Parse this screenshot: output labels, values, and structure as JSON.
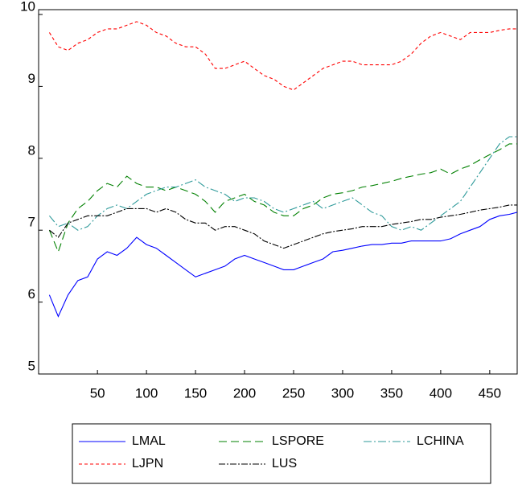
{
  "chart_data": {
    "type": "line",
    "x": [
      1,
      10,
      20,
      30,
      40,
      50,
      60,
      70,
      80,
      90,
      100,
      110,
      120,
      130,
      140,
      150,
      160,
      170,
      180,
      190,
      200,
      210,
      220,
      230,
      240,
      250,
      260,
      270,
      280,
      290,
      300,
      310,
      320,
      330,
      340,
      350,
      360,
      370,
      380,
      390,
      400,
      410,
      420,
      430,
      440,
      450,
      460,
      470,
      478
    ],
    "xlim": [
      -10,
      478
    ],
    "xticks": [
      50,
      100,
      150,
      200,
      250,
      300,
      350,
      400,
      450
    ],
    "ylim": [
      5,
      10
    ],
    "yticks": [
      5,
      6,
      7,
      8,
      9,
      10
    ],
    "series": [
      {
        "name": "LMAL",
        "color": "#0000ff",
        "dash": "none",
        "values": [
          6.1,
          5.8,
          6.1,
          6.3,
          6.35,
          6.6,
          6.7,
          6.65,
          6.75,
          6.9,
          6.8,
          6.75,
          6.65,
          6.55,
          6.45,
          6.35,
          6.4,
          6.45,
          6.5,
          6.6,
          6.65,
          6.6,
          6.55,
          6.5,
          6.45,
          6.45,
          6.5,
          6.55,
          6.6,
          6.7,
          6.72,
          6.75,
          6.78,
          6.8,
          6.8,
          6.82,
          6.82,
          6.85,
          6.85,
          6.85,
          6.85,
          6.88,
          6.95,
          7.0,
          7.05,
          7.15,
          7.2,
          7.22,
          7.25
        ]
      },
      {
        "name": "LSPORE",
        "color": "#008000",
        "dash": "10,5",
        "values": [
          7.0,
          6.7,
          7.1,
          7.3,
          7.4,
          7.55,
          7.65,
          7.6,
          7.75,
          7.65,
          7.6,
          7.6,
          7.55,
          7.6,
          7.55,
          7.5,
          7.4,
          7.25,
          7.4,
          7.45,
          7.5,
          7.4,
          7.35,
          7.25,
          7.2,
          7.2,
          7.3,
          7.35,
          7.45,
          7.5,
          7.52,
          7.55,
          7.6,
          7.62,
          7.65,
          7.68,
          7.72,
          7.75,
          7.78,
          7.8,
          7.85,
          7.78,
          7.85,
          7.9,
          7.98,
          8.05,
          8.12,
          8.2,
          8.2
        ]
      },
      {
        "name": "LCHINA",
        "color": "#2e9a9a",
        "dash": "10,3,2,3",
        "values": [
          7.2,
          7.05,
          7.1,
          7.0,
          7.05,
          7.2,
          7.3,
          7.35,
          7.3,
          7.4,
          7.5,
          7.55,
          7.6,
          7.6,
          7.65,
          7.7,
          7.6,
          7.55,
          7.5,
          7.4,
          7.45,
          7.45,
          7.4,
          7.3,
          7.25,
          7.3,
          7.35,
          7.4,
          7.3,
          7.35,
          7.4,
          7.45,
          7.35,
          7.25,
          7.2,
          7.05,
          7.0,
          7.05,
          7.0,
          7.1,
          7.2,
          7.3,
          7.4,
          7.6,
          7.8,
          8.0,
          8.2,
          8.3,
          8.3
        ]
      },
      {
        "name": "LJPN",
        "color": "#ff0000",
        "dash": "4,3",
        "values": [
          9.75,
          9.55,
          9.5,
          9.6,
          9.65,
          9.75,
          9.8,
          9.8,
          9.85,
          9.9,
          9.85,
          9.75,
          9.7,
          9.6,
          9.55,
          9.55,
          9.45,
          9.25,
          9.25,
          9.3,
          9.35,
          9.25,
          9.15,
          9.1,
          9.0,
          8.95,
          9.05,
          9.15,
          9.25,
          9.3,
          9.35,
          9.35,
          9.3,
          9.3,
          9.3,
          9.3,
          9.35,
          9.45,
          9.6,
          9.7,
          9.75,
          9.7,
          9.65,
          9.75,
          9.75,
          9.75,
          9.78,
          9.8,
          9.8
        ]
      },
      {
        "name": "LUS",
        "color": "#000000",
        "dash": "8,2,2,2",
        "values": [
          7.0,
          6.9,
          7.1,
          7.15,
          7.2,
          7.2,
          7.2,
          7.25,
          7.3,
          7.3,
          7.3,
          7.25,
          7.3,
          7.25,
          7.15,
          7.1,
          7.1,
          7.0,
          7.05,
          7.05,
          7.0,
          6.95,
          6.85,
          6.8,
          6.75,
          6.8,
          6.85,
          6.9,
          6.95,
          6.98,
          7.0,
          7.02,
          7.05,
          7.05,
          7.05,
          7.08,
          7.1,
          7.12,
          7.15,
          7.15,
          7.18,
          7.2,
          7.22,
          7.25,
          7.28,
          7.3,
          7.32,
          7.35,
          7.35
        ]
      }
    ]
  }
}
